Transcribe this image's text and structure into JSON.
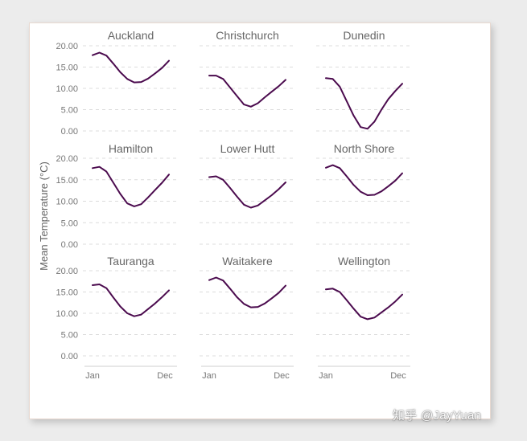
{
  "chart_data": {
    "type": "line",
    "layout": "small-multiples-3x3",
    "ylabel": "Mean Temperature (°C)",
    "xlabel": "",
    "ylim": [
      0,
      20
    ],
    "yticks": [
      "20.00",
      "15.00",
      "10.00",
      "5.00",
      "0.00"
    ],
    "x_tick_labels": [
      "Jan",
      "Dec"
    ],
    "grid": true,
    "line_color": "#4b0b4e",
    "panels": [
      {
        "name": "Auckland",
        "values": [
          17.8,
          18.4,
          17.7,
          15.8,
          13.8,
          12.2,
          11.4,
          11.5,
          12.3,
          13.5,
          14.8,
          16.5
        ]
      },
      {
        "name": "Christchurch",
        "values": [
          13.0,
          13.0,
          12.2,
          10.2,
          8.2,
          6.2,
          5.7,
          6.5,
          7.9,
          9.2,
          10.5,
          12.0
        ]
      },
      {
        "name": "Dunedin",
        "values": [
          12.4,
          12.2,
          10.4,
          7.0,
          3.6,
          0.9,
          0.5,
          2.2,
          5.0,
          7.5,
          9.4,
          11.1
        ]
      },
      {
        "name": "Hamilton",
        "values": [
          17.7,
          18.0,
          16.9,
          14.3,
          11.7,
          9.5,
          8.8,
          9.3,
          10.9,
          12.6,
          14.3,
          16.2
        ]
      },
      {
        "name": "Lower Hutt",
        "values": [
          15.6,
          15.8,
          15.0,
          13.1,
          11.1,
          9.2,
          8.5,
          9.0,
          10.2,
          11.4,
          12.8,
          14.4
        ]
      },
      {
        "name": "North Shore",
        "values": [
          17.8,
          18.4,
          17.7,
          15.8,
          13.8,
          12.2,
          11.4,
          11.5,
          12.3,
          13.5,
          14.8,
          16.5
        ]
      },
      {
        "name": "Tauranga",
        "values": [
          16.6,
          16.8,
          15.9,
          13.7,
          11.6,
          10.0,
          9.3,
          9.7,
          11.0,
          12.3,
          13.8,
          15.4
        ]
      },
      {
        "name": "Waitakere",
        "values": [
          17.8,
          18.4,
          17.7,
          15.8,
          13.8,
          12.2,
          11.4,
          11.5,
          12.3,
          13.5,
          14.8,
          16.5
        ]
      },
      {
        "name": "Wellington",
        "values": [
          15.6,
          15.8,
          15.0,
          13.1,
          11.1,
          9.2,
          8.6,
          9.0,
          10.2,
          11.4,
          12.8,
          14.4
        ]
      }
    ]
  },
  "watermark": "知乎 @JayYuan"
}
